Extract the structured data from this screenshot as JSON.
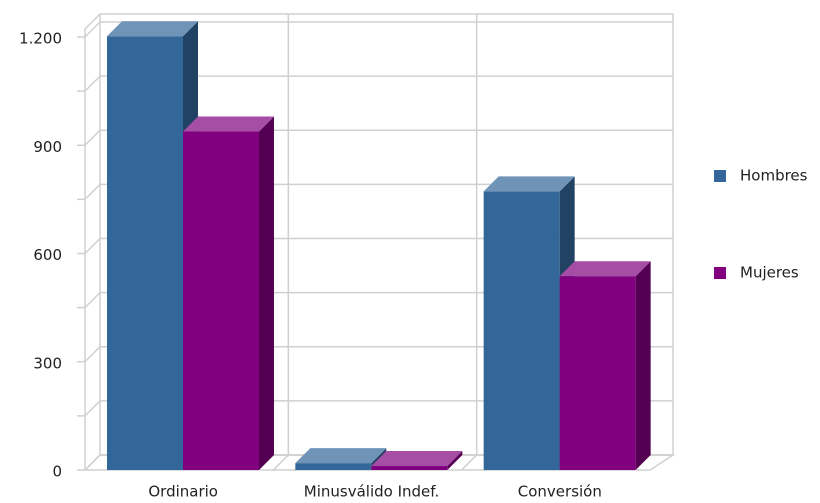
{
  "chart_data": {
    "type": "bar3d",
    "categories": [
      "Ordinario",
      "Minusválido Indef.",
      "Conversión"
    ],
    "series": [
      {
        "name": "Hombres",
        "color": "#336699",
        "values": [
          1202,
          19,
          772
        ]
      },
      {
        "name": "Mujeres",
        "color": "#800080",
        "values": [
          938,
          11,
          537
        ]
      }
    ],
    "ylim": [
      0,
      1200
    ],
    "yticks": [
      0,
      300,
      600,
      900,
      {
        "value": 1200,
        "label": "1.200"
      }
    ],
    "minor_yticks": [
      150,
      450,
      750,
      1050
    ],
    "grid": true,
    "legend": "right"
  }
}
